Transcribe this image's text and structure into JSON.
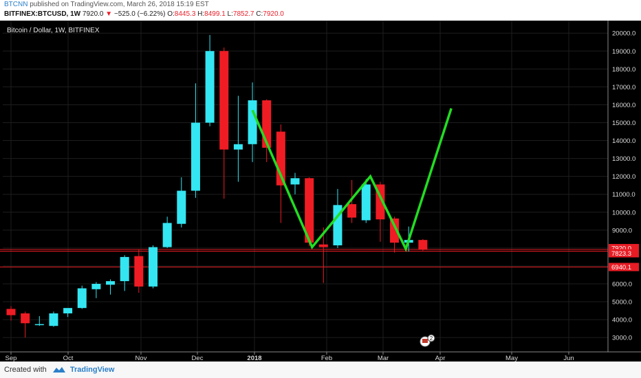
{
  "publish": {
    "author": "BTCNN",
    "text": "published on TradingView.com, March 26, 2018 15:19 EST"
  },
  "symbol_bar": {
    "symbol": "BITFINEX:BTCUSD, 1W",
    "last": "7920.0",
    "change": "−525.0 (−6.22%)",
    "open_label": "O:",
    "open": "8445.3",
    "high_label": "H:",
    "high": "8499.1",
    "low_label": "L:",
    "low": "7852.7",
    "close_label": "C:",
    "close": "7920.0"
  },
  "footer": {
    "created_with": "Created with",
    "brand": "TradingView"
  },
  "chart_data": {
    "type": "candlestick",
    "title": "Bitcoin / Dollar, 1W, BITFINEX",
    "ylim": [
      2200,
      20700
    ],
    "yticks": [
      3000,
      4000,
      5000,
      6000,
      7000,
      8000,
      9000,
      10000,
      11000,
      12000,
      13000,
      14000,
      15000,
      16000,
      17000,
      18000,
      19000,
      20000
    ],
    "ytick_labels": [
      "3000.0",
      "4000.0",
      "5000.0",
      "6000.0",
      "7000.0",
      "8000.0",
      "9000.0",
      "10000.0",
      "11000.0",
      "12000.0",
      "13000.0",
      "14000.0",
      "15000.0",
      "16000.0",
      "17000.0",
      "18000.0",
      "19000.0",
      "20000.0"
    ],
    "xtick_labels": [
      "Sep",
      "Oct",
      "Nov",
      "Dec",
      "2018",
      "Feb",
      "Mar",
      "Apr",
      "May",
      "Jun"
    ],
    "colors": {
      "background": "#000000",
      "up": "#33e6f2",
      "down": "#f01c24",
      "projection": "#22dd22",
      "hline": "#e81c24",
      "grid": "#1e1e1e",
      "axis_text": "#dddddd"
    },
    "candles": [
      {
        "o": 4600,
        "h": 4750,
        "l": 3950,
        "c": 4250
      },
      {
        "o": 4350,
        "h": 4450,
        "l": 3000,
        "c": 3800
      },
      {
        "o": 3700,
        "h": 4200,
        "l": 3650,
        "c": 3750
      },
      {
        "o": 3650,
        "h": 4450,
        "l": 3600,
        "c": 4350
      },
      {
        "o": 4350,
        "h": 4600,
        "l": 4150,
        "c": 4650
      },
      {
        "o": 4650,
        "h": 5900,
        "l": 4600,
        "c": 5750
      },
      {
        "o": 5700,
        "h": 6100,
        "l": 5200,
        "c": 6000
      },
      {
        "o": 5950,
        "h": 6250,
        "l": 5400,
        "c": 6150
      },
      {
        "o": 6150,
        "h": 7600,
        "l": 5600,
        "c": 7500
      },
      {
        "o": 7550,
        "h": 7900,
        "l": 5500,
        "c": 5850
      },
      {
        "o": 5850,
        "h": 8150,
        "l": 5750,
        "c": 8050
      },
      {
        "o": 8050,
        "h": 9750,
        "l": 8000,
        "c": 9400
      },
      {
        "o": 9350,
        "h": 11950,
        "l": 9150,
        "c": 11200
      },
      {
        "o": 11200,
        "h": 17200,
        "l": 10800,
        "c": 15000
      },
      {
        "o": 15000,
        "h": 19900,
        "l": 14800,
        "c": 19000
      },
      {
        "o": 19000,
        "h": 19200,
        "l": 10750,
        "c": 13500
      },
      {
        "o": 13500,
        "h": 16500,
        "l": 11700,
        "c": 13800
      },
      {
        "o": 13800,
        "h": 17250,
        "l": 12800,
        "c": 16250
      },
      {
        "o": 16250,
        "h": 16300,
        "l": 12800,
        "c": 13600
      },
      {
        "o": 14500,
        "h": 14900,
        "l": 9400,
        "c": 11500
      },
      {
        "o": 11550,
        "h": 12200,
        "l": 11000,
        "c": 11900
      },
      {
        "o": 11900,
        "h": 11950,
        "l": 8100,
        "c": 8300
      },
      {
        "o": 8200,
        "h": 9150,
        "l": 6050,
        "c": 8050
      },
      {
        "o": 8150,
        "h": 11300,
        "l": 8000,
        "c": 10400
      },
      {
        "o": 10450,
        "h": 11800,
        "l": 9400,
        "c": 9700
      },
      {
        "o": 9550,
        "h": 11850,
        "l": 9400,
        "c": 11550
      },
      {
        "o": 11550,
        "h": 11700,
        "l": 8350,
        "c": 9600
      },
      {
        "o": 9650,
        "h": 9750,
        "l": 7750,
        "c": 8300
      },
      {
        "o": 8300,
        "h": 9200,
        "l": 7800,
        "c": 8450
      },
      {
        "o": 8450,
        "h": 8500,
        "l": 7850,
        "c": 7920
      }
    ],
    "projection": [
      {
        "i": 17,
        "y": 15700
      },
      {
        "i": 21.2,
        "y": 8050
      },
      {
        "i": 25.3,
        "y": 12000
      },
      {
        "i": 27.8,
        "y": 7950
      },
      {
        "i": 31,
        "y": 15800
      }
    ],
    "price_lines": [
      {
        "value": 7920.0,
        "label": "7920.0"
      },
      {
        "value": 7823.3,
        "label": "7823.3"
      },
      {
        "value": 6940.1,
        "label": "6940.1"
      }
    ],
    "badge": "2"
  }
}
